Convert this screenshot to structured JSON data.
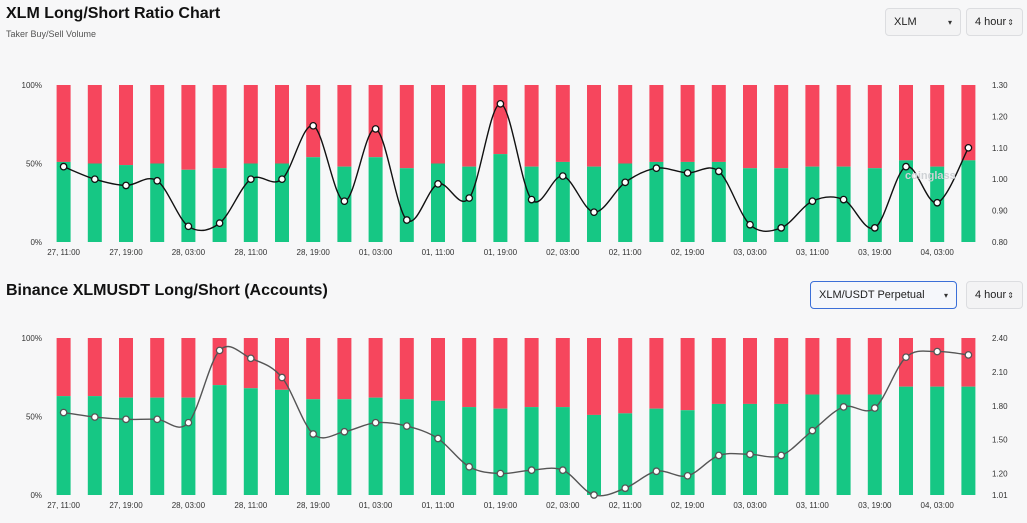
{
  "panel1": {
    "title": "XLM Long/Short Ratio Chart",
    "subtitle": "Taker Buy/Sell Volume",
    "symbol_select": "XLM",
    "interval_select": "4 hour"
  },
  "panel2": {
    "title": "Binance XLMUSDT Long/Short (Accounts)",
    "symbol_select": "XLM/USDT Perpetual",
    "interval_select": "4 hour"
  },
  "colors": {
    "long": "#16c784",
    "short": "#f6465d",
    "line": "#111111",
    "line2": "#555555"
  },
  "icons": {
    "select_caret": "▾",
    "stepper": "⇕"
  },
  "watermark": "coinglass",
  "chart_data": [
    {
      "type": "bar",
      "stacked": true,
      "x_tick_labels": [
        "27, 11:00",
        "27, 19:00",
        "28, 03:00",
        "28, 11:00",
        "28, 19:00",
        "01, 03:00",
        "01, 11:00",
        "01, 19:00",
        "02, 03:00",
        "02, 11:00",
        "02, 19:00",
        "03, 03:00",
        "03, 11:00",
        "03, 19:00",
        "04, 03:00"
      ],
      "bar_count": 30,
      "y_left_ticks": [
        "0%",
        "50%",
        "100%"
      ],
      "y_right_ticks": [
        "0.80",
        "0.90",
        "1.00",
        "1.10",
        "1.20",
        "1.30"
      ],
      "ylim_right": [
        0.8,
        1.3
      ],
      "series": [
        {
          "values": [
            51,
            50,
            49,
            50,
            46,
            47,
            50,
            50,
            54,
            48,
            54,
            47,
            50,
            48,
            56,
            48,
            51,
            48,
            50,
            51,
            51,
            51,
            47,
            47,
            48,
            48,
            47,
            52,
            48,
            52
          ]
        },
        {
          "values": [
            1.04,
            1.0,
            0.98,
            0.995,
            0.85,
            0.86,
            1.0,
            1.0,
            1.17,
            0.93,
            1.16,
            0.87,
            0.985,
            0.94,
            1.24,
            0.935,
            1.01,
            0.895,
            0.99,
            1.035,
            1.02,
            1.025,
            0.855,
            0.845,
            0.93,
            0.935,
            0.845,
            1.04,
            0.925,
            1.1
          ]
        }
      ]
    },
    {
      "type": "bar",
      "stacked": true,
      "x_tick_labels": [
        "27, 11:00",
        "27, 19:00",
        "28, 03:00",
        "28, 11:00",
        "28, 19:00",
        "01, 03:00",
        "01, 11:00",
        "01, 19:00",
        "02, 03:00",
        "02, 11:00",
        "02, 19:00",
        "03, 03:00",
        "03, 11:00",
        "03, 19:00",
        "04, 03:00"
      ],
      "bar_count": 30,
      "y_left_ticks": [
        "0%",
        "50%",
        "100%"
      ],
      "y_right_ticks": [
        "1.01",
        "1.20",
        "1.50",
        "1.80",
        "2.10",
        "2.40"
      ],
      "ylim_right": [
        1.01,
        2.4
      ],
      "series": [
        {
          "values": [
            63,
            63,
            62,
            62,
            62,
            70,
            68,
            67,
            61,
            61,
            62,
            61,
            60,
            56,
            55,
            56,
            56,
            51,
            52,
            55,
            54,
            58,
            58,
            58,
            64,
            64,
            64,
            69,
            69,
            69
          ]
        },
        {
          "values": [
            1.74,
            1.7,
            1.68,
            1.68,
            1.65,
            2.29,
            2.22,
            2.05,
            1.55,
            1.57,
            1.65,
            1.62,
            1.51,
            1.26,
            1.2,
            1.23,
            1.23,
            1.01,
            1.07,
            1.22,
            1.18,
            1.36,
            1.37,
            1.36,
            1.58,
            1.79,
            1.78,
            2.23,
            2.28,
            2.25
          ]
        }
      ]
    }
  ]
}
